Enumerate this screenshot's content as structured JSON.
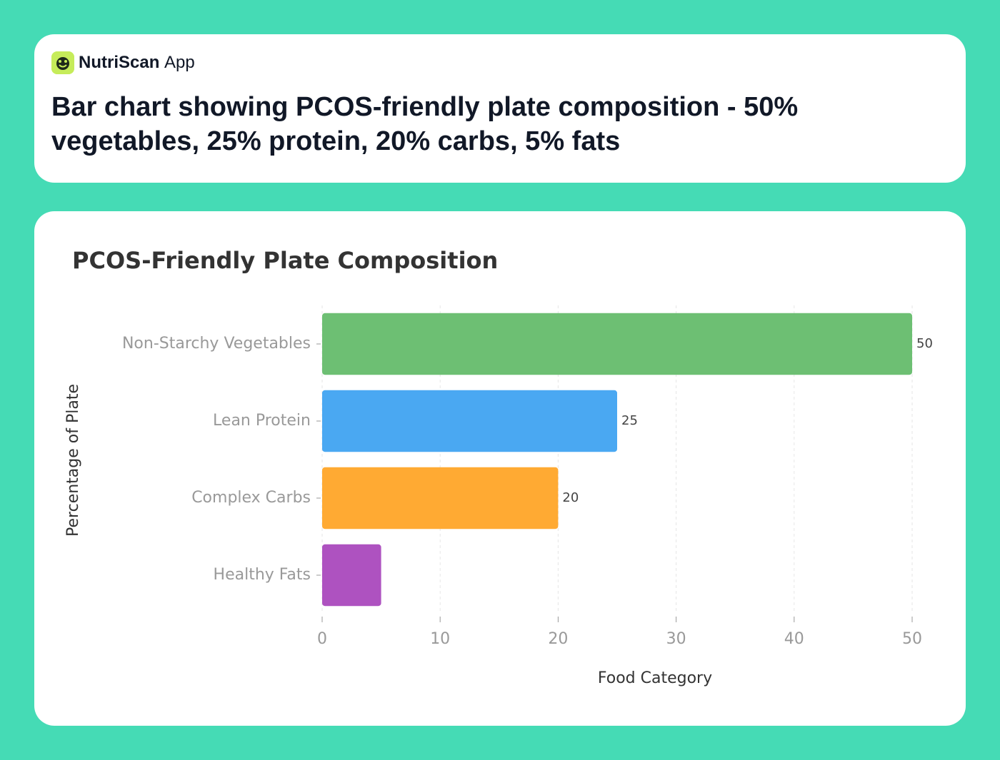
{
  "header": {
    "app_name": "NutriScan",
    "app_suffix": "App",
    "caption": "Bar chart showing PCOS-friendly plate composition - 50% vegetables, 25% protein, 20% carbs, 5% fats"
  },
  "chart_data": {
    "type": "hbar",
    "title": "PCOS-Friendly Plate Composition",
    "x_label": "Food Category",
    "y_label": "Percentage of Plate",
    "categories": [
      "Non-Starchy Vegetables",
      "Lean Protein",
      "Complex Carbs",
      "Healthy Fats"
    ],
    "values": [
      50,
      25,
      20,
      5
    ],
    "value_labels": [
      "50",
      "25",
      "20",
      null
    ],
    "colors": [
      "#6dbf73",
      "#4aa8f2",
      "#ffaa33",
      "#ae52c0"
    ],
    "xlim": [
      0,
      50
    ],
    "xticks": [
      0,
      10,
      20,
      30,
      40,
      50
    ],
    "grid": true
  }
}
